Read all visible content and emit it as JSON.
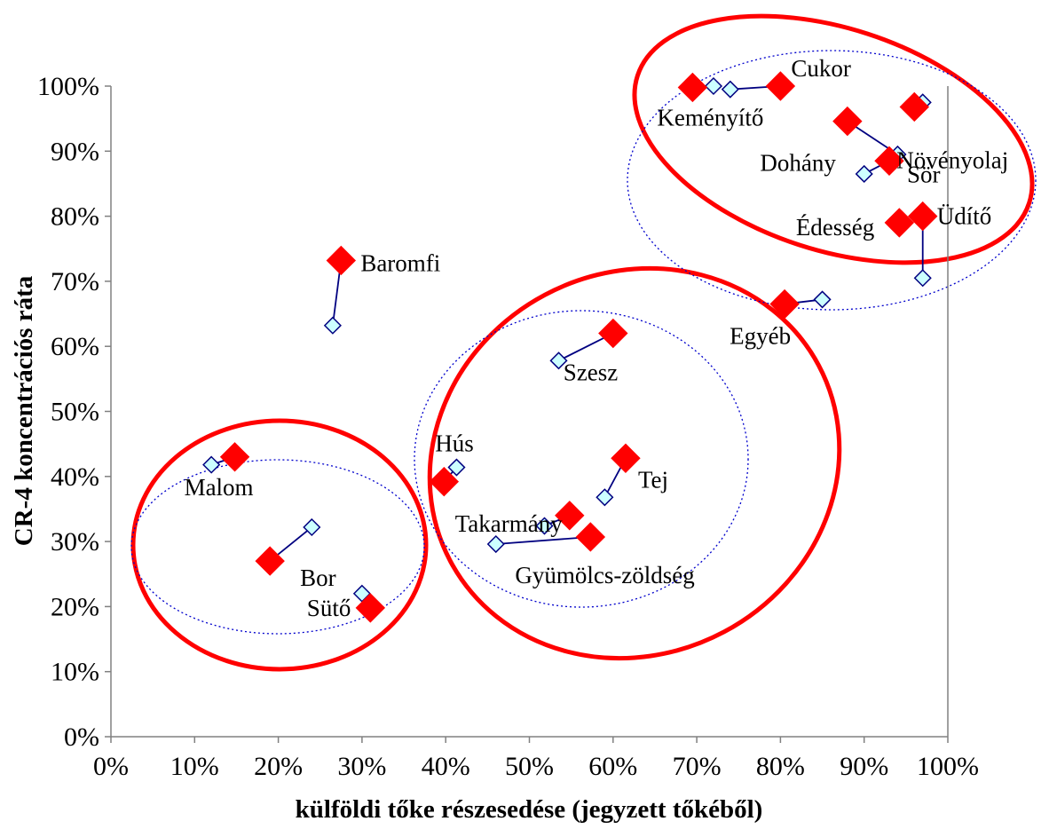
{
  "chart_data": {
    "type": "scatter",
    "xlabel": "külföldi tőke részesedése (jegyzett tőkéből)",
    "ylabel": "CR-4 koncentrációs ráta",
    "xlim": [
      0,
      1
    ],
    "ylim": [
      0,
      1
    ],
    "x_ticks": [
      "0%",
      "10%",
      "20%",
      "30%",
      "40%",
      "50%",
      "60%",
      "70%",
      "80%",
      "90%",
      "100%"
    ],
    "y_ticks": [
      "0%",
      "10%",
      "20%",
      "30%",
      "40%",
      "50%",
      "60%",
      "70%",
      "80%",
      "90%",
      "100%"
    ],
    "grid": false,
    "legend": "none",
    "marker_colors": {
      "current": "#ff0000",
      "previous_fill": "#ccffff",
      "previous_edge": "#000080",
      "connector": "#000080",
      "cluster_ellipse": "#ff0000",
      "dotted_ellipse": "#0000cc"
    },
    "items": [
      {
        "label": "Cukor",
        "current": [
          0.8,
          1.0
        ],
        "previous": [
          [
            0.74,
            0.995
          ]
        ]
      },
      {
        "label": "Keményítő",
        "current": [
          0.695,
          0.998
        ],
        "previous": [
          [
            0.72,
            1.0
          ]
        ]
      },
      {
        "label": "Növényolaj",
        "current": [
          0.96,
          0.968
        ],
        "previous": [
          [
            0.97,
            0.975
          ]
        ]
      },
      {
        "label": "Dohány",
        "current": [
          0.88,
          0.946
        ],
        "previous": [
          [
            0.94,
            0.895
          ]
        ]
      },
      {
        "label": "Sör",
        "current": [
          0.93,
          0.885
        ],
        "previous": [
          [
            0.9,
            0.865
          ]
        ]
      },
      {
        "label": "Édesség",
        "current": [
          0.942,
          0.79
        ],
        "previous": [
          [
            0.94,
            0.79
          ]
        ]
      },
      {
        "label": "Üdítő",
        "current": [
          0.97,
          0.8
        ],
        "previous": [
          [
            0.97,
            0.705
          ]
        ]
      },
      {
        "label": "Egyéb",
        "current": [
          0.805,
          0.665
        ],
        "previous": [
          [
            0.85,
            0.672
          ]
        ]
      },
      {
        "label": "Baromfi",
        "current": [
          0.275,
          0.732
        ],
        "previous": [
          [
            0.265,
            0.632
          ]
        ]
      },
      {
        "label": "Szesz",
        "current": [
          0.6,
          0.62
        ],
        "previous": [
          [
            0.535,
            0.578
          ]
        ]
      },
      {
        "label": "Hús",
        "current": [
          0.398,
          0.392
        ],
        "previous": [
          [
            0.413,
            0.414
          ]
        ]
      },
      {
        "label": "Tej",
        "current": [
          0.615,
          0.428
        ],
        "previous": [
          [
            0.59,
            0.368
          ]
        ]
      },
      {
        "label": "Takarmány",
        "current": [
          0.548,
          0.34
        ],
        "previous": [
          [
            0.518,
            0.324
          ]
        ]
      },
      {
        "label": "Gyümölcs-zöldség",
        "current": [
          0.573,
          0.307
        ],
        "previous": [
          [
            0.46,
            0.296
          ]
        ]
      },
      {
        "label": "Malom",
        "current": [
          0.148,
          0.43
        ],
        "previous": [
          [
            0.12,
            0.418
          ]
        ]
      },
      {
        "label": "Bor",
        "current": [
          0.19,
          0.27
        ],
        "previous": [
          [
            0.24,
            0.322
          ]
        ]
      },
      {
        "label": "Sütő",
        "current": [
          0.31,
          0.198
        ],
        "previous": [
          [
            0.3,
            0.22
          ]
        ]
      }
    ]
  }
}
